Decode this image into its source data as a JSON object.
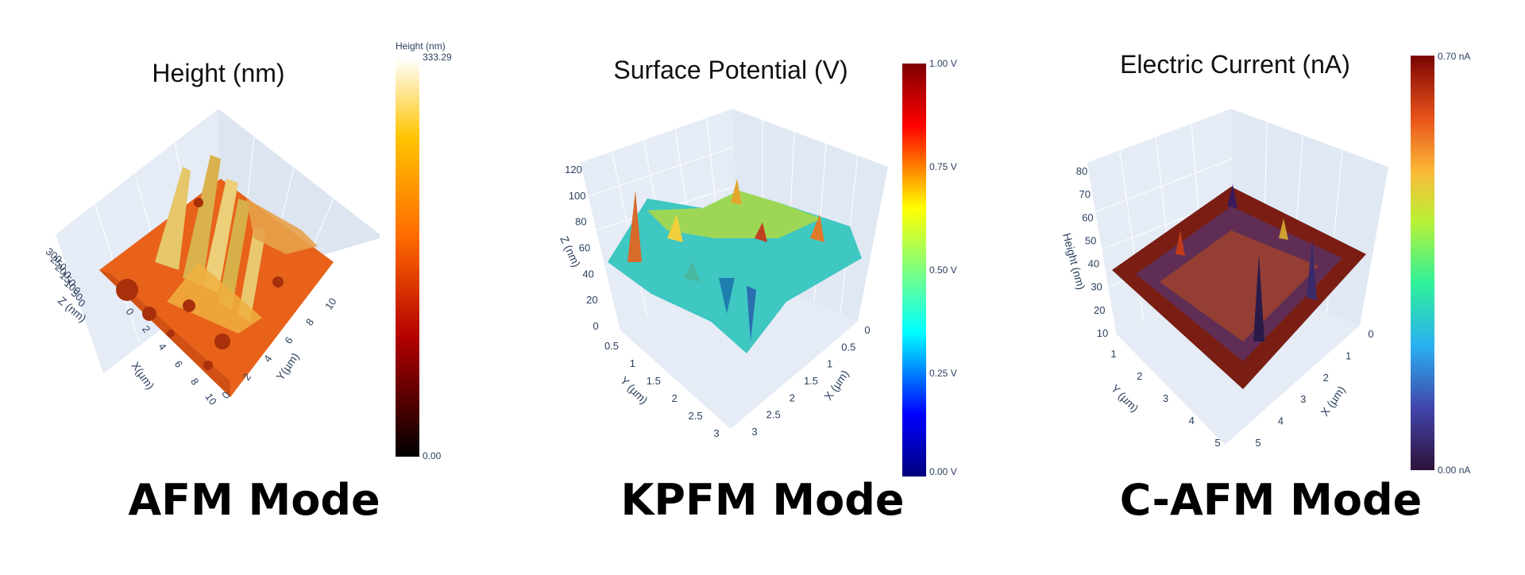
{
  "panels": [
    {
      "mode_label": "AFM Mode",
      "chart_data": {
        "type": "surface",
        "title": "Height (nm)",
        "colorbar": {
          "title": "Height (nm)",
          "min_label": "0.00",
          "max_label": "333.29",
          "min": 0,
          "max": 333.29,
          "colorscale": "hot"
        },
        "x_axis": {
          "label": "X(µm)",
          "ticks": [
            "0",
            "2",
            "4",
            "6",
            "8",
            "10"
          ],
          "range": [
            0,
            10
          ]
        },
        "y_axis": {
          "label": "Y(µm)",
          "ticks": [
            "0",
            "2",
            "4",
            "6",
            "8",
            "10"
          ],
          "range": [
            0,
            10
          ]
        },
        "z_axis": {
          "label": "Z (nm)",
          "ticks": [
            "0",
            "50",
            "100",
            "150",
            "200",
            "250",
            "300"
          ],
          "range": [
            0,
            300
          ]
        }
      }
    },
    {
      "mode_label": "KPFM Mode",
      "chart_data": {
        "type": "surface",
        "title": "Surface Potential (V)",
        "colorbar": {
          "ticks": [
            "0.00 V",
            "0.25 V",
            "0.50 V",
            "0.75 V",
            "1.00 V"
          ],
          "min": 0,
          "max": 1,
          "colorscale": "jet"
        },
        "x_axis": {
          "label": "X (µm)",
          "ticks": [
            "0",
            "0.5",
            "1",
            "1.5",
            "2",
            "2.5",
            "3"
          ],
          "range": [
            0,
            3
          ]
        },
        "y_axis": {
          "label": "Y (µm)",
          "ticks": [
            "0",
            "0.5",
            "1",
            "1.5",
            "2",
            "2.5",
            "3"
          ],
          "range": [
            0,
            3
          ]
        },
        "z_axis": {
          "label": "Z (nm)",
          "ticks": [
            "0",
            "20",
            "40",
            "60",
            "80",
            "100",
            "120"
          ],
          "range": [
            0,
            120
          ]
        }
      }
    },
    {
      "mode_label": "C-AFM Mode",
      "chart_data": {
        "type": "surface",
        "title": "Electric Current (nA)",
        "colorbar": {
          "min_label": "0.00 nA",
          "max_label": "0.70 nA",
          "min": 0,
          "max": 0.7,
          "colorscale": "turbo"
        },
        "x_axis": {
          "label": "X (µm)",
          "ticks": [
            "0",
            "1",
            "2",
            "3",
            "4",
            "5"
          ],
          "range": [
            0,
            5
          ]
        },
        "y_axis": {
          "label": "Y (µm)",
          "ticks": [
            "0",
            "1",
            "2",
            "3",
            "4",
            "5"
          ],
          "range": [
            0,
            5
          ]
        },
        "z_axis": {
          "label": "Height (nm)",
          "ticks": [
            "10",
            "20",
            "30",
            "40",
            "50",
            "60",
            "70",
            "80"
          ],
          "range": [
            10,
            80
          ]
        }
      }
    }
  ],
  "colors": {
    "scene_bg": "#e5ecf6",
    "grid": "#ffffff",
    "afm_surface": "#e8621a",
    "kpfm_surface": "#3fc7c2",
    "cafm_surface": "#7a1e14"
  }
}
